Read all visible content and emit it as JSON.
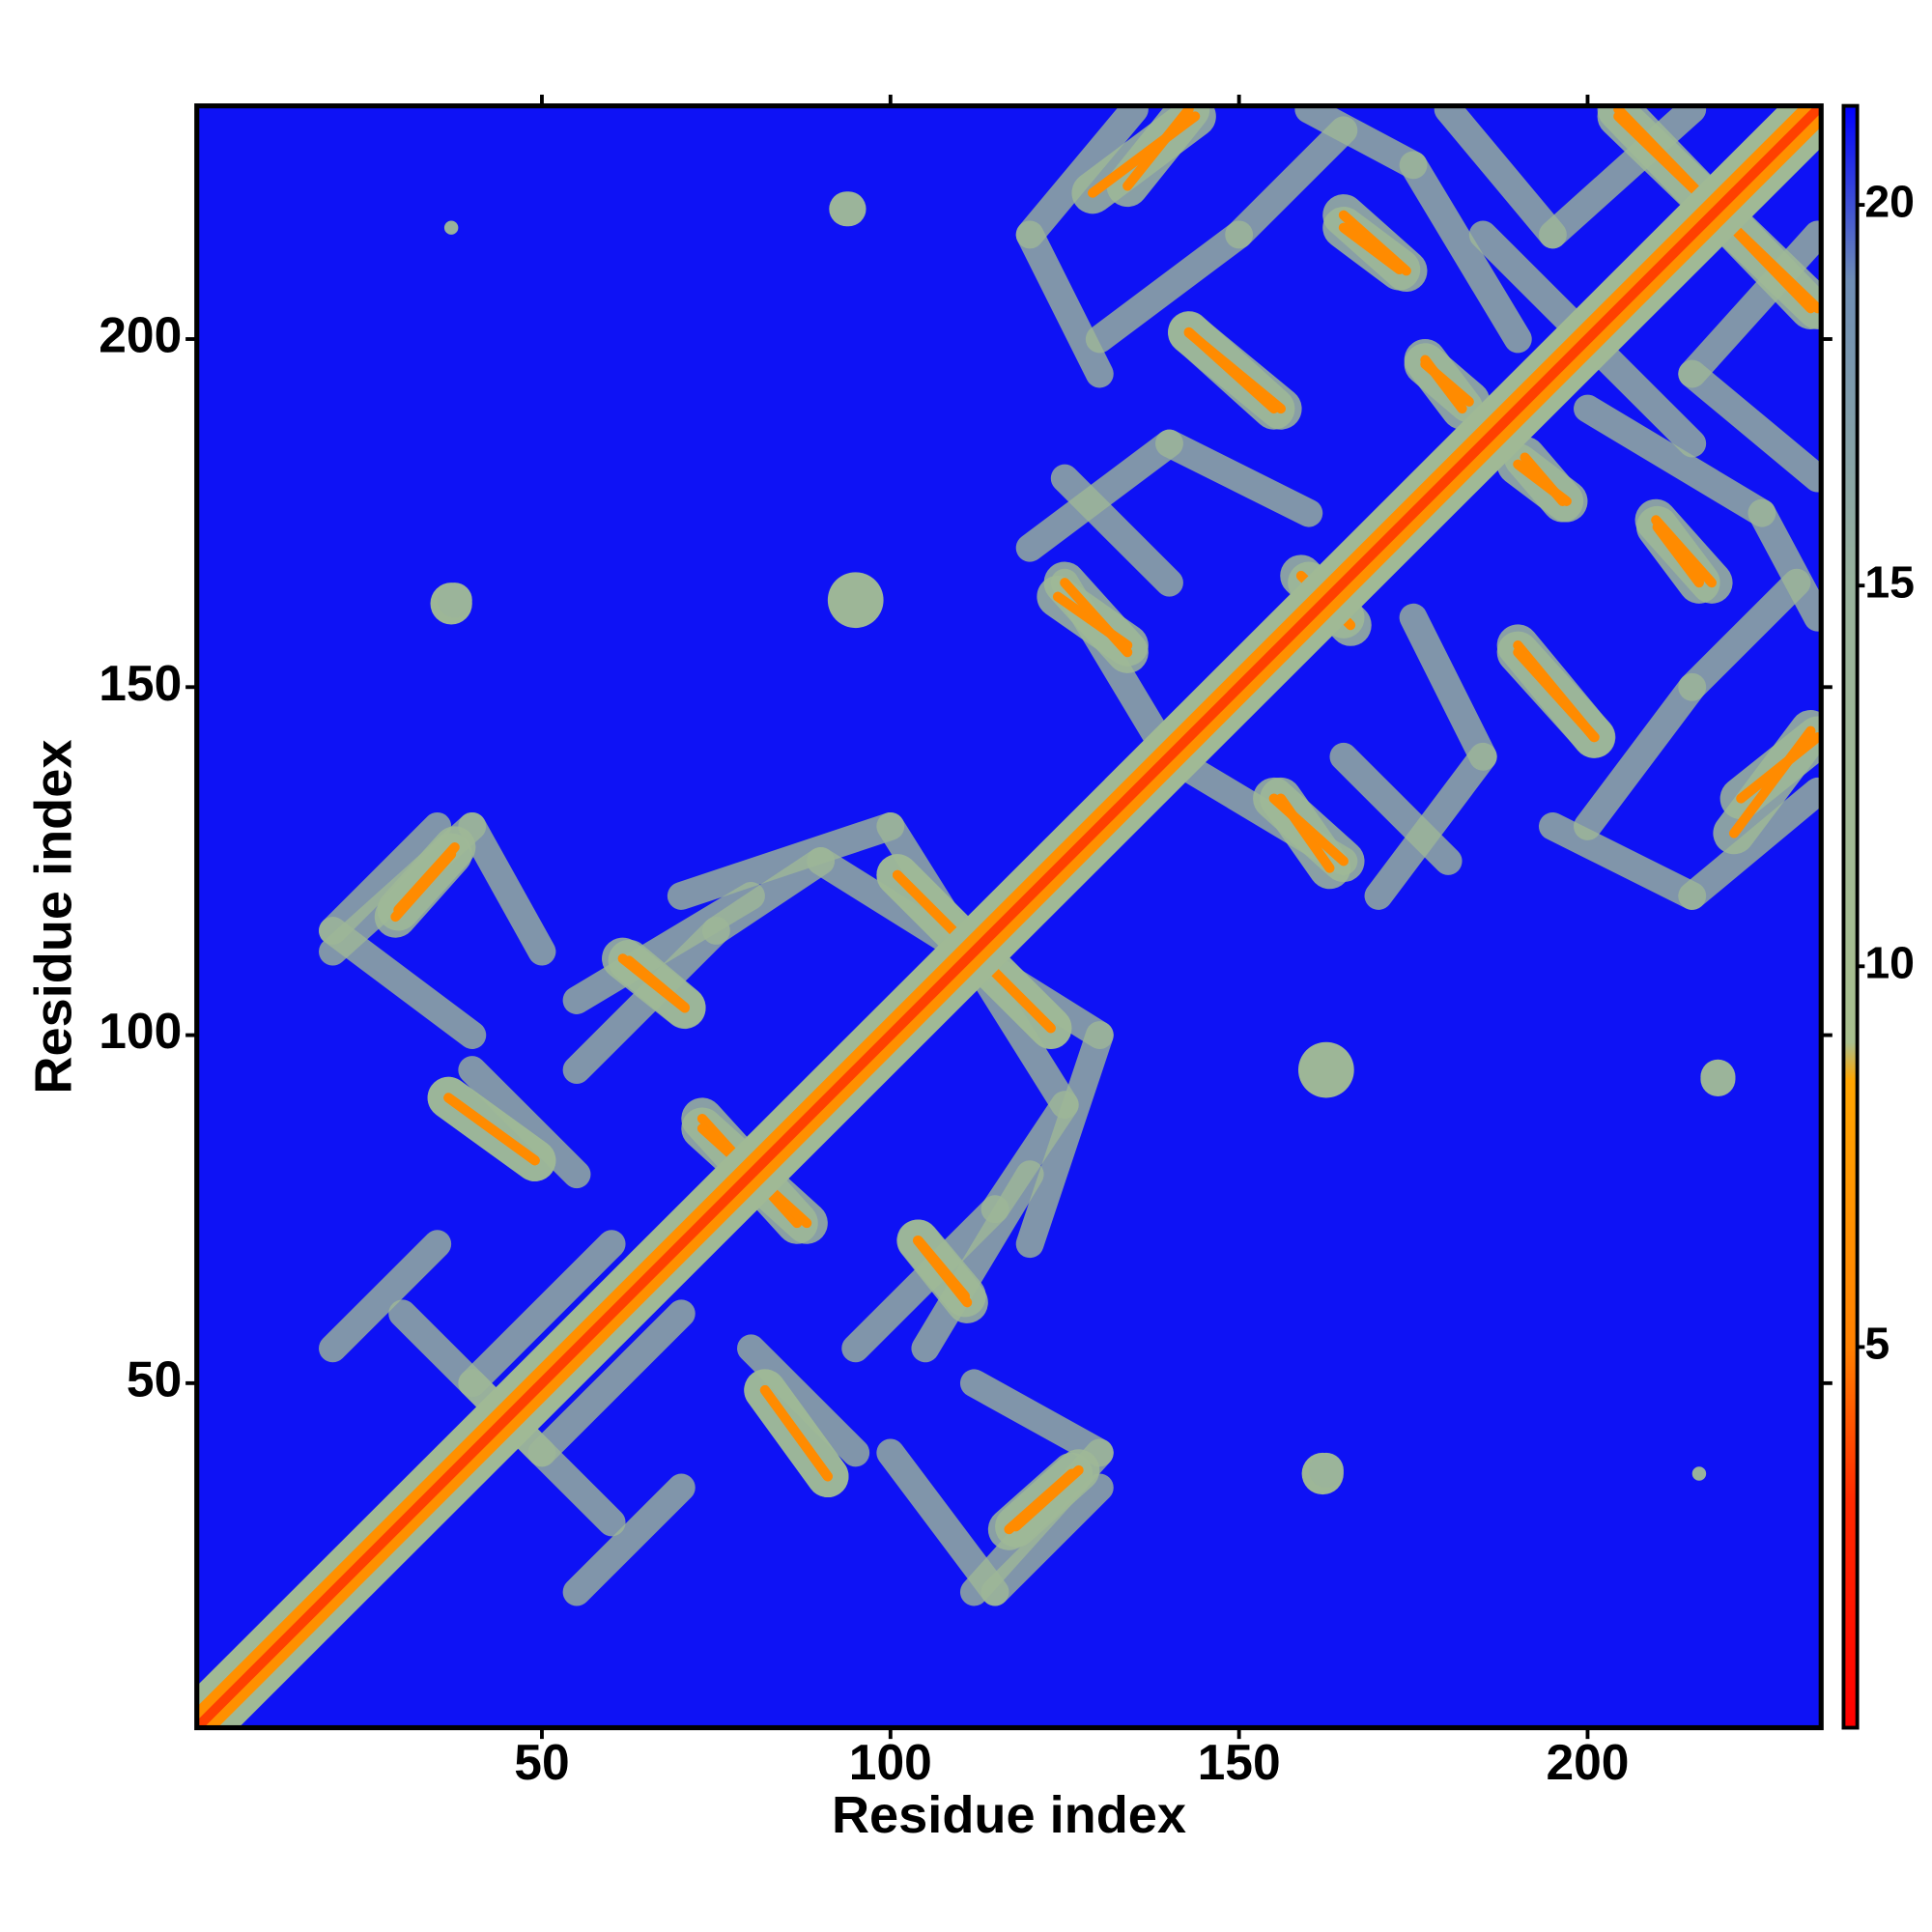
{
  "chart_data": {
    "type": "heatmap",
    "xlabel": "Residue index",
    "ylabel": "Residue index",
    "xlim": [
      0.5,
      233.5
    ],
    "ylim": [
      0.5,
      233.5
    ],
    "xticks": [
      50,
      100,
      150,
      200
    ],
    "yticks": [
      50,
      100,
      150,
      200
    ],
    "clim": [
      0,
      21.3
    ],
    "cticks": [
      5,
      10,
      15,
      20
    ],
    "colorscale": [
      {
        "value": 0,
        "color": "#ff0000"
      },
      {
        "value": 3,
        "color": "#ff2a00"
      },
      {
        "value": 5,
        "color": "#ff8000"
      },
      {
        "value": 8.5,
        "color": "#ffa500"
      },
      {
        "value": 9,
        "color": "#a8bf8e"
      },
      {
        "value": 15,
        "color": "#98b29c"
      },
      {
        "value": 19,
        "color": "#6e8db4"
      },
      {
        "value": 21.3,
        "color": "#0000ff"
      }
    ],
    "background_value": 21,
    "diagonal": [
      {
        "offset": 6,
        "value": 12
      },
      {
        "offset": 3,
        "value": 6.5
      },
      {
        "offset": 1,
        "value": 3.5
      }
    ],
    "contacts": [
      {
        "x1": 29,
        "y1": 117,
        "x2": 37,
        "y2": 126,
        "value": 6
      },
      {
        "x1": 61.6,
        "y1": 111,
        "x2": 70.5,
        "y2": 103.9,
        "value": 6
      },
      {
        "x1": 101,
        "y1": 123,
        "x2": 123,
        "y2": 101,
        "value": 6
      },
      {
        "x1": 36.6,
        "y1": 91,
        "x2": 49,
        "y2": 82,
        "value": 6
      },
      {
        "x1": 73,
        "y1": 88,
        "x2": 86.6,
        "y2": 73,
        "value": 6
      },
      {
        "x1": 82,
        "y1": 49,
        "x2": 91,
        "y2": 36.6,
        "value": 6
      },
      {
        "x1": 118,
        "y1": 29.4,
        "x2": 127,
        "y2": 37.5,
        "value": 6
      },
      {
        "x1": 104,
        "y1": 70.5,
        "x2": 110.7,
        "y2": 62.5,
        "value": 6
      },
      {
        "x1": 129,
        "y1": 221,
        "x2": 143.7,
        "y2": 232,
        "value": 6
      },
      {
        "x1": 165,
        "y1": 217.8,
        "x2": 174,
        "y2": 209.8,
        "value": 6
      },
      {
        "x1": 142.8,
        "y1": 200.9,
        "x2": 156,
        "y2": 190,
        "value": 6
      },
      {
        "x1": 176.7,
        "y1": 196.4,
        "x2": 183,
        "y2": 191,
        "value": 6
      },
      {
        "x1": 124,
        "y1": 163,
        "x2": 134,
        "y2": 156,
        "value": 6
      },
      {
        "x1": 160,
        "y1": 165,
        "x2": 166,
        "y2": 158.9,
        "value": 6
      },
      {
        "x1": 190,
        "y1": 182,
        "x2": 197,
        "y2": 176.7,
        "value": 6
      },
      {
        "x1": 210,
        "y1": 173,
        "x2": 216,
        "y2": 165,
        "value": 6
      },
      {
        "x1": 204.4,
        "y1": 232,
        "x2": 233,
        "y2": 204.4,
        "value": 6
      },
      {
        "x1": 190,
        "y1": 155,
        "x2": 201,
        "y2": 142.8,
        "value": 6
      },
      {
        "x1": 155,
        "y1": 134,
        "x2": 165,
        "y2": 125,
        "value": 6
      },
      {
        "x1": 222,
        "y1": 134,
        "x2": 233,
        "y2": 142.8,
        "value": 6
      }
    ],
    "lattice": [
      {
        "x1": 20,
        "y1": 112,
        "x2": 40,
        "y2": 130,
        "value": 13
      },
      {
        "x1": 40,
        "y1": 130,
        "x2": 50,
        "y2": 112,
        "value": 13
      },
      {
        "x1": 30,
        "y1": 60,
        "x2": 50,
        "y2": 40,
        "value": 13
      },
      {
        "x1": 50,
        "y1": 40,
        "x2": 70,
        "y2": 60,
        "value": 13
      },
      {
        "x1": 55,
        "y1": 20,
        "x2": 70,
        "y2": 35,
        "value": 13
      },
      {
        "x1": 70,
        "y1": 120,
        "x2": 100,
        "y2": 130,
        "value": 13
      },
      {
        "x1": 90,
        "y1": 125,
        "x2": 130,
        "y2": 100,
        "value": 13
      },
      {
        "x1": 100,
        "y1": 40,
        "x2": 115,
        "y2": 20,
        "value": 13
      },
      {
        "x1": 115,
        "y1": 20,
        "x2": 130,
        "y2": 35,
        "value": 13
      },
      {
        "x1": 40,
        "y1": 95,
        "x2": 55,
        "y2": 80,
        "value": 13
      },
      {
        "x1": 55,
        "y1": 105,
        "x2": 80,
        "y2": 120,
        "value": 13
      },
      {
        "x1": 95,
        "y1": 55,
        "x2": 115,
        "y2": 75,
        "value": 13
      },
      {
        "x1": 115,
        "y1": 75,
        "x2": 125,
        "y2": 90,
        "value": 13
      },
      {
        "x1": 125,
        "y1": 165,
        "x2": 140,
        "y2": 140,
        "value": 13
      },
      {
        "x1": 130,
        "y1": 200,
        "x2": 150,
        "y2": 215,
        "value": 13
      },
      {
        "x1": 150,
        "y1": 215,
        "x2": 165,
        "y2": 230,
        "value": 13
      },
      {
        "x1": 180,
        "y1": 233,
        "x2": 195,
        "y2": 215,
        "value": 13
      },
      {
        "x1": 195,
        "y1": 215,
        "x2": 215,
        "y2": 233,
        "value": 13
      },
      {
        "x1": 200,
        "y1": 190,
        "x2": 225,
        "y2": 175,
        "value": 13
      },
      {
        "x1": 225,
        "y1": 175,
        "x2": 233,
        "y2": 160,
        "value": 13
      },
      {
        "x1": 195,
        "y1": 130,
        "x2": 215,
        "y2": 120,
        "value": 13
      },
      {
        "x1": 215,
        "y1": 120,
        "x2": 233,
        "y2": 135,
        "value": 13
      },
      {
        "x1": 165,
        "y1": 140,
        "x2": 180,
        "y2": 125,
        "value": 13
      },
      {
        "x1": 170,
        "y1": 120,
        "x2": 185,
        "y2": 140,
        "value": 13
      },
      {
        "x1": 140,
        "y1": 185,
        "x2": 160,
        "y2": 175,
        "value": 13
      },
      {
        "x1": 185,
        "y1": 215,
        "x2": 200,
        "y2": 200,
        "value": 13
      }
    ],
    "islands": [
      {
        "x": 37,
        "y": 162,
        "r": 3,
        "value": 13
      },
      {
        "x": 95,
        "y": 162.5,
        "r": 4,
        "value": 13
      },
      {
        "x": 94,
        "y": 218.7,
        "r": 2.5,
        "value": 14
      },
      {
        "x": 37,
        "y": 216,
        "r": 1,
        "value": 15
      },
      {
        "x": 218.7,
        "y": 93.7,
        "r": 2.5,
        "value": 14
      },
      {
        "x": 162.5,
        "y": 37.5,
        "r": 2.5,
        "value": 14
      }
    ]
  }
}
